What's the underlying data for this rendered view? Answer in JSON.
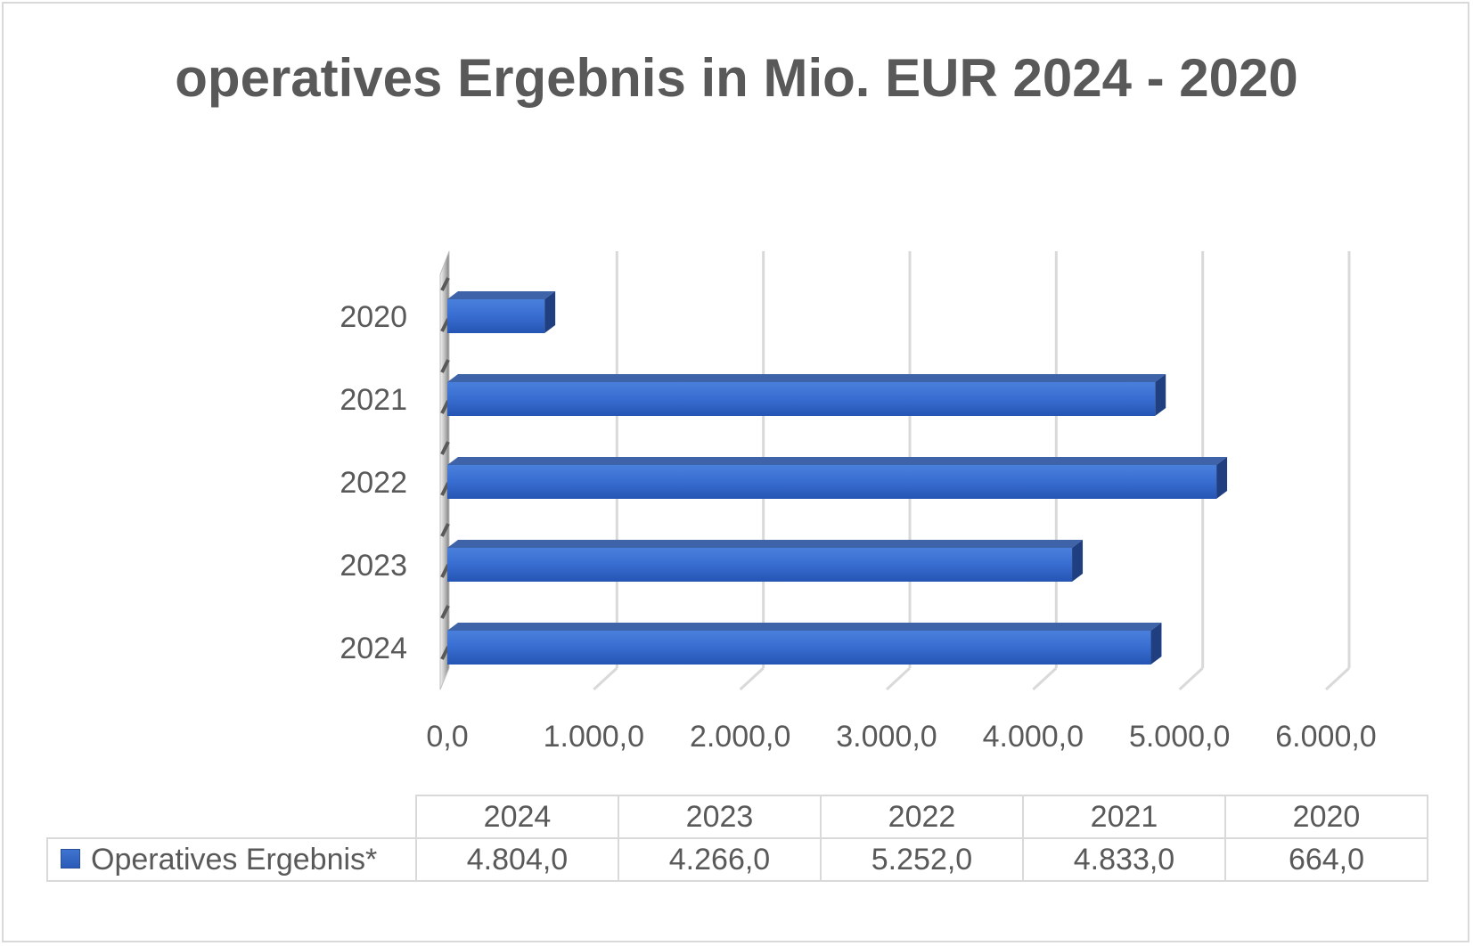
{
  "chart_data": {
    "type": "bar",
    "orientation": "horizontal",
    "style": "3d",
    "title": "operatives Ergebnis in Mio. EUR 2024 - 2020",
    "categories": [
      "2024",
      "2023",
      "2022",
      "2021",
      "2020"
    ],
    "series": [
      {
        "name": "Operatives Ergebnis*",
        "values": [
          4804.0,
          4266.0,
          5252.0,
          4833.0,
          664.0
        ],
        "color": "#2f64c8"
      }
    ],
    "xlim": [
      0,
      6000
    ],
    "x_ticks": [
      "0,0",
      "1.000,0",
      "2.000,0",
      "3.000,0",
      "4.000,0",
      "5.000,0",
      "6.000,0"
    ],
    "grid": true,
    "legend": "data-table",
    "data_table": {
      "columns": [
        "2024",
        "2023",
        "2022",
        "2021",
        "2020"
      ],
      "rows": [
        {
          "label": "Operatives Ergebnis*",
          "cells": [
            "4.804,0",
            "4.266,0",
            "5.252,0",
            "4.833,0",
            "664,0"
          ]
        }
      ]
    }
  }
}
